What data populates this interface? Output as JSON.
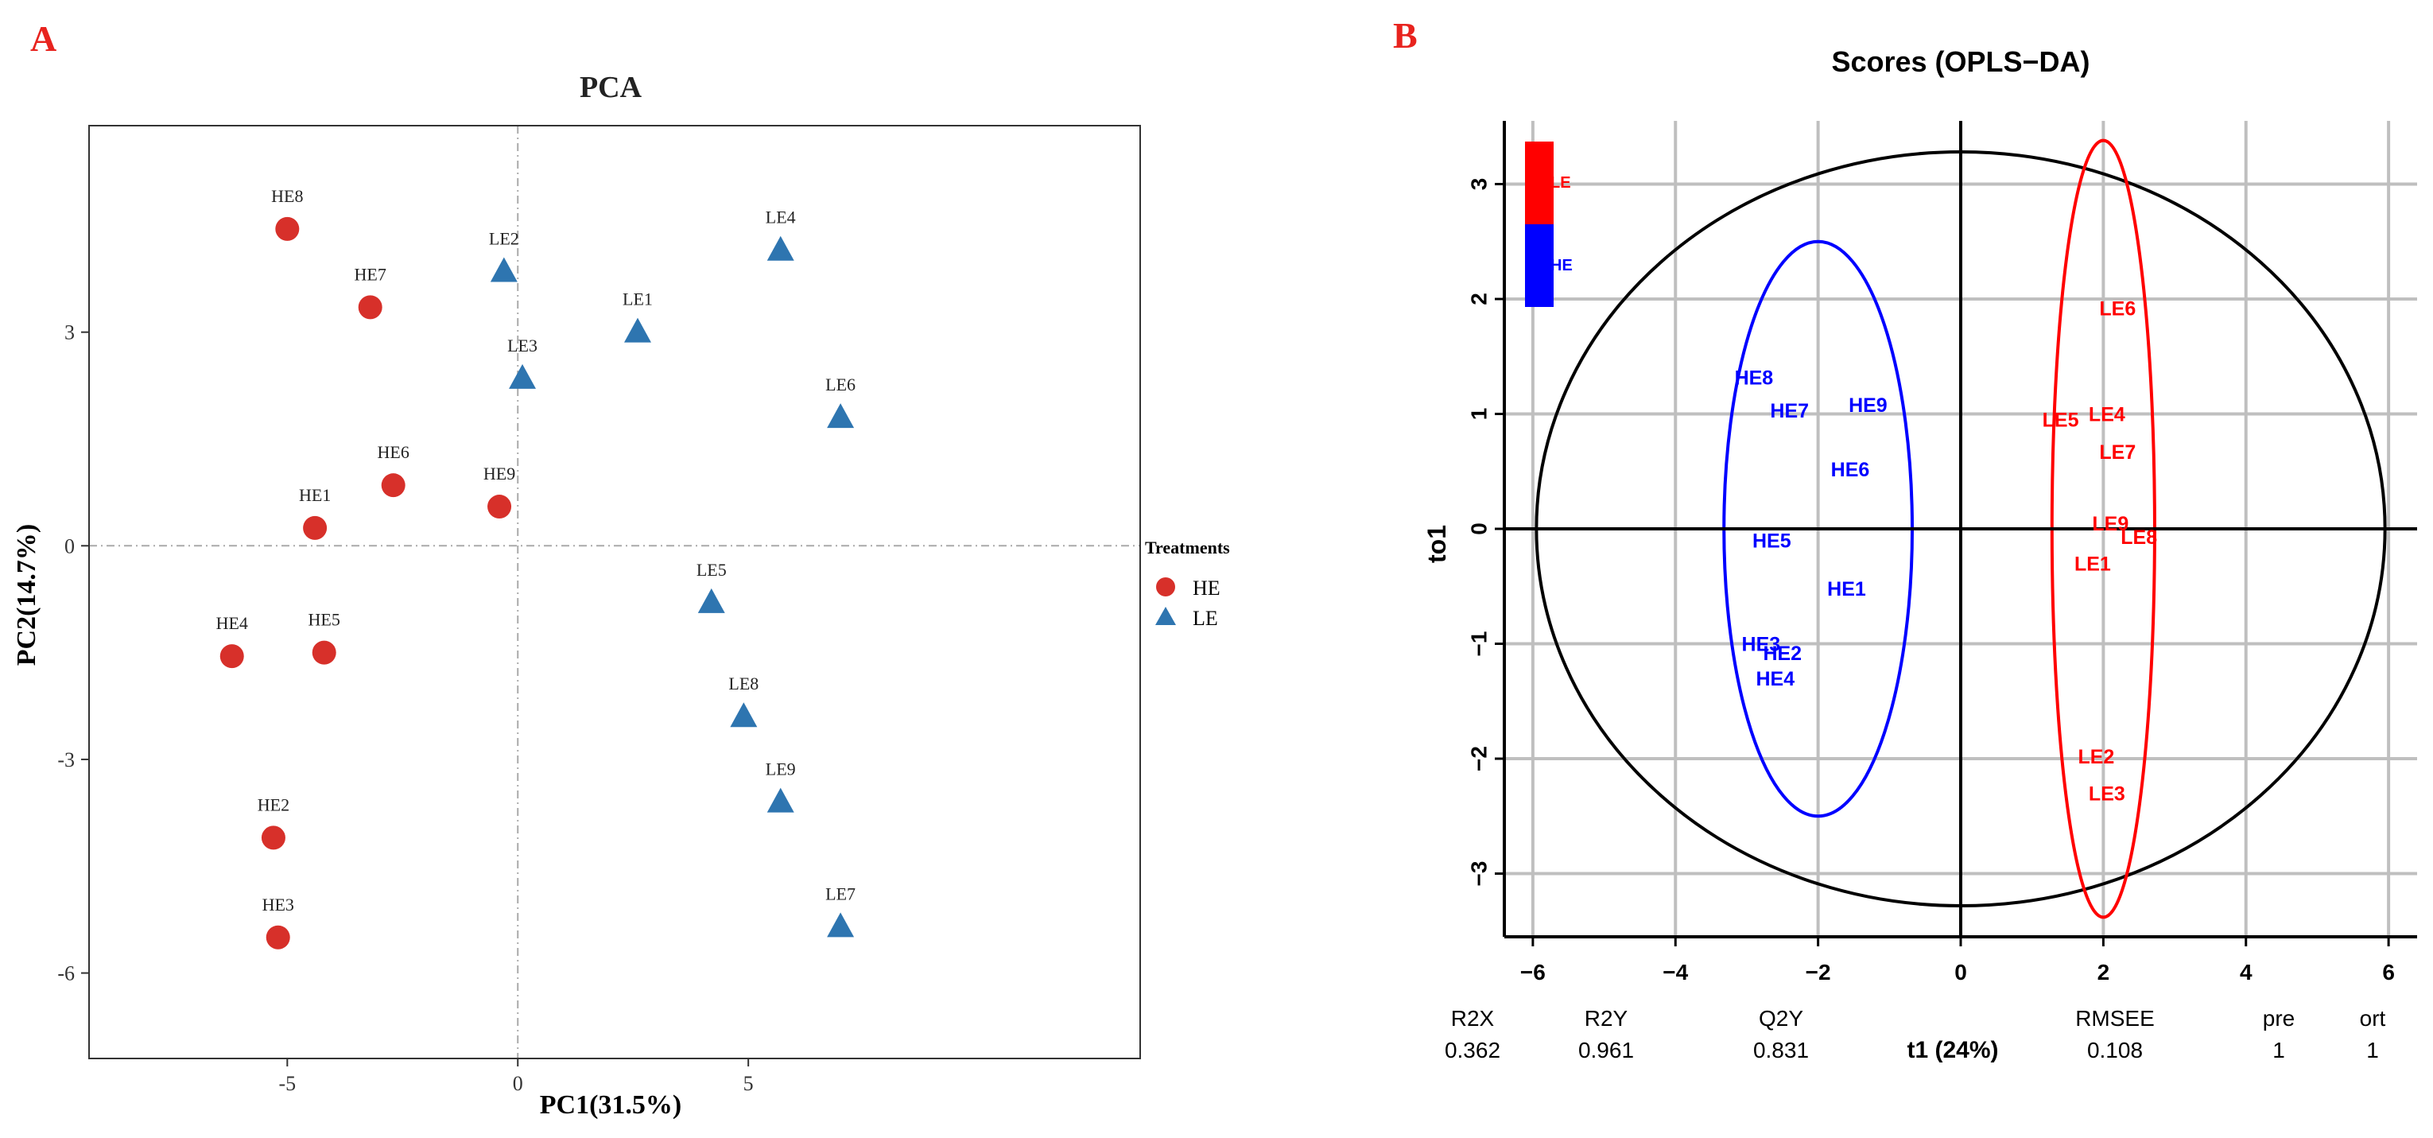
{
  "panel_labels": {
    "a": "A",
    "b": "B"
  },
  "colors": {
    "he_red": "#d7302a",
    "le_blue": "#2e75b0",
    "opls_red": "#ff0000",
    "opls_blue": "#0000ff",
    "panel_label_red": "#e8231e",
    "grid_grey": "#bfbfbf",
    "dash_grey": "#aaaaaa"
  },
  "chart_data": [
    {
      "id": "pca",
      "type": "scatter",
      "title": "PCA",
      "xlabel": "PC1(31.5%)",
      "ylabel": "PC2(14.7%)",
      "xlim": [
        -9.3,
        13.5
      ],
      "ylim": [
        -7.2,
        5.9
      ],
      "xticks": [
        -5,
        0,
        5
      ],
      "yticks": [
        -6,
        -3,
        0,
        3
      ],
      "xtick_labels": [
        "-5",
        "0",
        "5"
      ],
      "ytick_labels": [
        "-6",
        "-3",
        "0",
        "3"
      ],
      "reference_lines": {
        "x": 0,
        "y": 0
      },
      "legend": {
        "title": "Treatments",
        "position": "right"
      },
      "series": [
        {
          "name": "HE",
          "marker": "circle",
          "points": [
            {
              "label": "HE1",
              "x": -4.4,
              "y": 0.25
            },
            {
              "label": "HE2",
              "x": -5.3,
              "y": -4.1
            },
            {
              "label": "HE3",
              "x": -5.2,
              "y": -5.5
            },
            {
              "label": "HE4",
              "x": -6.2,
              "y": -1.55
            },
            {
              "label": "HE5",
              "x": -4.2,
              "y": -1.5
            },
            {
              "label": "HE6",
              "x": -2.7,
              "y": 0.85
            },
            {
              "label": "HE7",
              "x": -3.2,
              "y": 3.35
            },
            {
              "label": "HE8",
              "x": -5.0,
              "y": 4.45
            },
            {
              "label": "HE9",
              "x": -0.4,
              "y": 0.55
            }
          ]
        },
        {
          "name": "LE",
          "marker": "triangle",
          "points": [
            {
              "label": "LE1",
              "x": 2.6,
              "y": 3.0
            },
            {
              "label": "LE2",
              "x": -0.3,
              "y": 3.85
            },
            {
              "label": "LE3",
              "x": 0.1,
              "y": 2.35
            },
            {
              "label": "LE4",
              "x": 5.7,
              "y": 4.15
            },
            {
              "label": "LE5",
              "x": 4.2,
              "y": -0.8
            },
            {
              "label": "LE6",
              "x": 7.0,
              "y": 1.8
            },
            {
              "label": "LE7",
              "x": 7.0,
              "y": -5.35
            },
            {
              "label": "LE8",
              "x": 4.9,
              "y": -2.4
            },
            {
              "label": "LE9",
              "x": 5.7,
              "y": -3.6
            }
          ]
        }
      ]
    },
    {
      "id": "opls",
      "type": "scatter",
      "title": "Scores (OPLS−DA)",
      "xlabel": "t1 (24%)",
      "ylabel": "to1",
      "xlim": [
        -6.4,
        6.4
      ],
      "ylim": [
        -3.55,
        3.55
      ],
      "xticks": [
        -6,
        -4,
        -2,
        0,
        2,
        4,
        6
      ],
      "yticks": [
        -3,
        -2,
        -1,
        0,
        1,
        2,
        3
      ],
      "xtick_labels": [
        "−6",
        "−4",
        "−2",
        "0",
        "2",
        "4",
        "6"
      ],
      "ytick_labels": [
        "−3",
        "−2",
        "−1",
        "0",
        "1",
        "2",
        "3"
      ],
      "grid": true,
      "reference_lines": {
        "x": 0,
        "y": 0
      },
      "hotelling_ellipse": {
        "cx": 0,
        "cy": 0,
        "rx": 5.95,
        "ry": 3.28
      },
      "group_ellipses": [
        {
          "group": "HE",
          "cx": -2.0,
          "cy": 0.0,
          "rx": 1.32,
          "ry": 2.5
        },
        {
          "group": "LE",
          "cx": 2.0,
          "cy": 0.0,
          "rx": 0.72,
          "ry": 3.38
        }
      ],
      "legend": {
        "entries": [
          "LE",
          "HE"
        ],
        "position": "top-left"
      },
      "series": [
        {
          "name": "HE",
          "points": [
            {
              "label": "HE1",
              "x": -1.6,
              "y": -0.52
            },
            {
              "label": "HE2",
              "x": -2.5,
              "y": -1.08
            },
            {
              "label": "HE3",
              "x": -2.8,
              "y": -1.0
            },
            {
              "label": "HE4",
              "x": -2.6,
              "y": -1.3
            },
            {
              "label": "HE5",
              "x": -2.65,
              "y": -0.1
            },
            {
              "label": "HE6",
              "x": -1.55,
              "y": 0.52
            },
            {
              "label": "HE7",
              "x": -2.4,
              "y": 1.03
            },
            {
              "label": "HE8",
              "x": -2.9,
              "y": 1.32
            },
            {
              "label": "HE9",
              "x": -1.3,
              "y": 1.08
            }
          ]
        },
        {
          "name": "LE",
          "points": [
            {
              "label": "LE1",
              "x": 1.85,
              "y": -0.3
            },
            {
              "label": "LE2",
              "x": 1.9,
              "y": -1.98
            },
            {
              "label": "LE3",
              "x": 2.05,
              "y": -2.3
            },
            {
              "label": "LE4",
              "x": 2.05,
              "y": 1.0
            },
            {
              "label": "LE5",
              "x": 1.4,
              "y": 0.95
            },
            {
              "label": "LE6",
              "x": 2.2,
              "y": 1.92
            },
            {
              "label": "LE7",
              "x": 2.2,
              "y": 0.67
            },
            {
              "label": "LE8",
              "x": 2.5,
              "y": -0.07
            },
            {
              "label": "LE9",
              "x": 2.1,
              "y": 0.05
            }
          ]
        }
      ],
      "stats": [
        {
          "name": "R2X",
          "value": "0.362"
        },
        {
          "name": "R2Y",
          "value": "0.961"
        },
        {
          "name": "Q2Y",
          "value": "0.831"
        },
        {
          "name": "RMSEE",
          "value": "0.108"
        },
        {
          "name": "pre",
          "value": "1"
        },
        {
          "name": "ort",
          "value": "1"
        }
      ]
    }
  ]
}
